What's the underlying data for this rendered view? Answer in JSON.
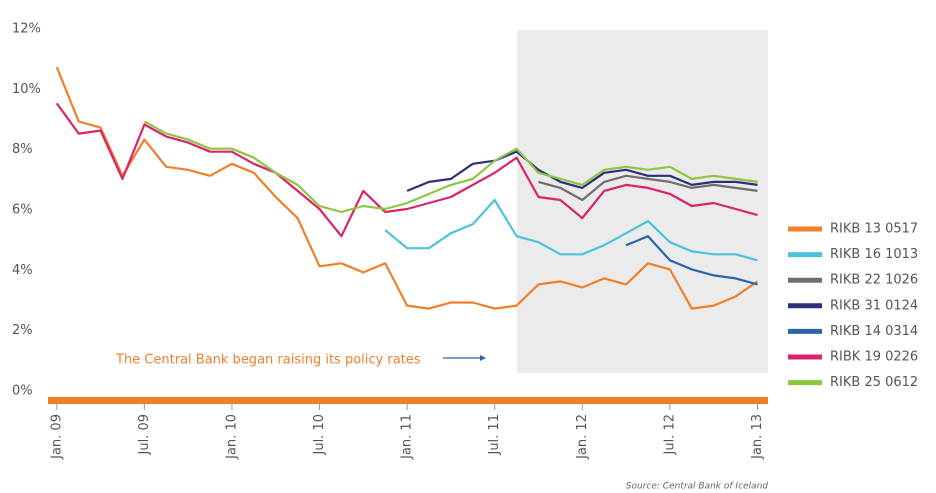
{
  "chart_data": {
    "type": "line",
    "source": "Source: Central Bank of Iceland",
    "annotation": "The Central Bank began raising its policy rates",
    "x": [
      2009,
      2009.125,
      2009.25,
      2009.375,
      2009.5,
      2009.625,
      2009.75,
      2009.875,
      2010,
      2010.125,
      2010.25,
      2010.375,
      2010.5,
      2010.625,
      2010.75,
      2010.875,
      2011,
      2011.125,
      2011.25,
      2011.375,
      2011.5,
      2011.625,
      2011.75,
      2011.875,
      2012,
      2012.125,
      2012.25,
      2012.375,
      2012.5,
      2012.625,
      2012.75,
      2012.875,
      2013
    ],
    "xlim": [
      2008.95,
      2013.06
    ],
    "xticks": [
      {
        "value": 2009,
        "label": "Jan. 09"
      },
      {
        "value": 2009.5,
        "label": "Jul. 09"
      },
      {
        "value": 2010,
        "label": "Jan. 10"
      },
      {
        "value": 2010.5,
        "label": "Jul. 10"
      },
      {
        "value": 2011,
        "label": "Jan. 11"
      },
      {
        "value": 2011.5,
        "label": "Jul. 11"
      },
      {
        "value": 2012,
        "label": "Jan. 12"
      },
      {
        "value": 2012.5,
        "label": "Jul. 12"
      },
      {
        "value": 2013,
        "label": "Jan. 13"
      }
    ],
    "ylim": [
      -0.23,
      12.1
    ],
    "yticks": [
      {
        "value": 0,
        "label": "0%"
      },
      {
        "value": 2,
        "label": "2%"
      },
      {
        "value": 4,
        "label": "4%"
      },
      {
        "value": 6,
        "label": "6%"
      },
      {
        "value": 8,
        "label": "8%"
      },
      {
        "value": 10,
        "label": "10%"
      },
      {
        "value": 12,
        "label": "12%"
      }
    ],
    "series": [
      {
        "name": "RIKB 13 0517",
        "color": "#f07f2a",
        "values": [
          10.8,
          9.0,
          8.8,
          7.2,
          8.4,
          7.5,
          7.4,
          7.2,
          7.6,
          7.3,
          6.5,
          5.8,
          4.2,
          4.3,
          4.0,
          4.3,
          2.9,
          2.8,
          3.0,
          3.0,
          2.8,
          2.9,
          3.6,
          3.7,
          3.5,
          3.8,
          3.6,
          4.3,
          4.1,
          2.8,
          2.9,
          3.2,
          3.7
        ]
      },
      {
        "name": "RIKB 16 1013",
        "color": "#4cc3dd",
        "values": [
          null,
          null,
          null,
          null,
          null,
          null,
          null,
          null,
          null,
          null,
          null,
          null,
          null,
          null,
          null,
          5.4,
          4.8,
          4.8,
          5.3,
          5.6,
          6.4,
          5.2,
          5.0,
          4.6,
          4.6,
          4.9,
          5.3,
          5.7,
          5.0,
          4.7,
          4.6,
          4.6,
          4.4
        ]
      },
      {
        "name": "RIKB 22 1026",
        "color": "#6d6e70",
        "values": [
          null,
          null,
          null,
          null,
          null,
          null,
          null,
          null,
          null,
          null,
          null,
          null,
          null,
          null,
          null,
          null,
          null,
          null,
          null,
          null,
          null,
          null,
          7.0,
          6.8,
          6.4,
          7.0,
          7.2,
          7.1,
          7.0,
          6.8,
          6.9,
          6.8,
          6.7
        ]
      },
      {
        "name": "RIKB 31 0124",
        "color": "#2e2f7a",
        "values": [
          null,
          null,
          null,
          null,
          null,
          null,
          null,
          null,
          null,
          null,
          null,
          null,
          null,
          null,
          null,
          null,
          6.7,
          7.0,
          7.1,
          7.6,
          7.7,
          8.0,
          7.4,
          7.0,
          6.8,
          7.3,
          7.4,
          7.2,
          7.2,
          6.9,
          7.0,
          7.0,
          6.9
        ]
      },
      {
        "name": "RIKB 14 0314",
        "color": "#2d65ad",
        "values": [
          null,
          null,
          null,
          null,
          null,
          null,
          null,
          null,
          null,
          null,
          null,
          null,
          null,
          null,
          null,
          null,
          null,
          null,
          null,
          null,
          null,
          null,
          null,
          null,
          null,
          null,
          4.9,
          5.2,
          4.4,
          4.1,
          3.9,
          3.8,
          3.6
        ]
      },
      {
        "name": "RIBK 19 0226",
        "color": "#d9236c",
        "values": [
          9.6,
          8.6,
          8.7,
          7.1,
          8.9,
          8.5,
          8.3,
          8.0,
          8.0,
          7.6,
          7.3,
          6.7,
          6.1,
          5.2,
          6.7,
          6.0,
          6.1,
          6.3,
          6.5,
          6.9,
          7.3,
          7.8,
          6.5,
          6.4,
          5.8,
          6.7,
          6.9,
          6.8,
          6.6,
          6.2,
          6.3,
          6.1,
          5.9
        ]
      },
      {
        "name": "RIKB 25 0612",
        "color": "#8dc63f",
        "values": [
          null,
          null,
          null,
          null,
          9.0,
          8.6,
          8.4,
          8.1,
          8.1,
          7.8,
          7.3,
          6.9,
          6.2,
          6.0,
          6.2,
          6.1,
          6.3,
          6.6,
          6.9,
          7.1,
          7.7,
          8.1,
          7.3,
          7.1,
          6.9,
          7.4,
          7.5,
          7.4,
          7.5,
          7.1,
          7.2,
          7.1,
          7.0
        ]
      }
    ]
  }
}
